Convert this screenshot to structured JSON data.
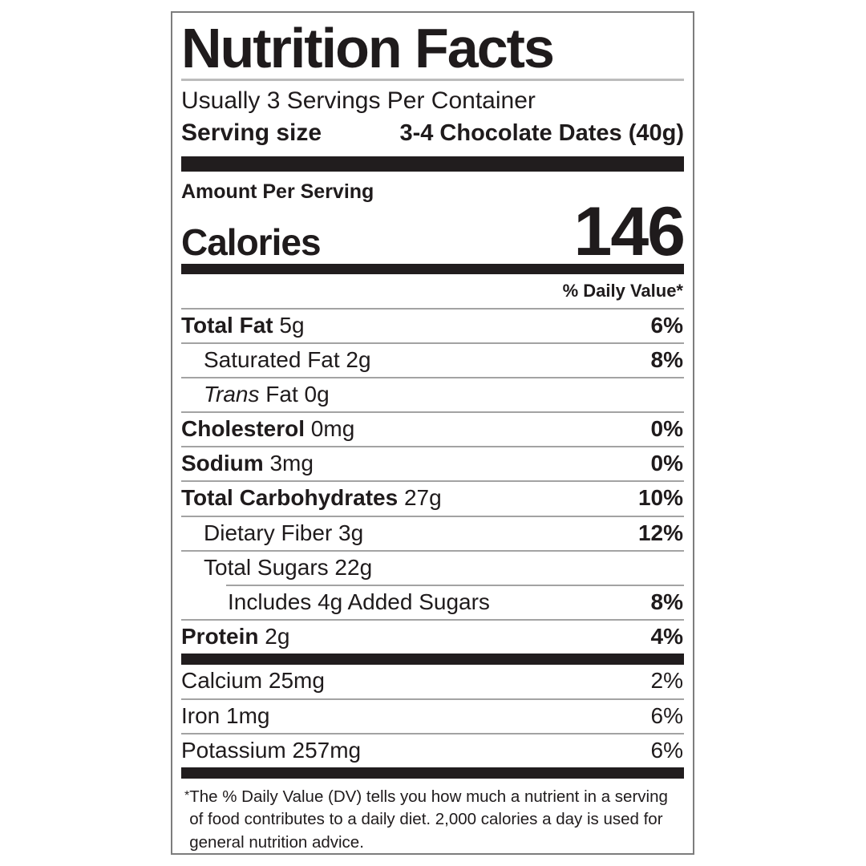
{
  "label": {
    "title": "Nutrition Facts",
    "servings_per_container": "Usually 3 Servings Per Container",
    "serving_size": {
      "label": "Serving size",
      "value": "3-4 Chocolate Dates (40g)"
    },
    "amount_per_serving": "Amount Per Serving",
    "calories": {
      "label": "Calories",
      "value": "146"
    },
    "daily_value_header": "% Daily Value*",
    "rows": [
      {
        "bold": "Total Fat",
        "rest": " 5g",
        "dv": "6%",
        "indent": 0
      },
      {
        "bold": "",
        "rest": "Saturated Fat 2g",
        "dv": "8%",
        "indent": 1
      },
      {
        "italic": "Trans",
        "rest": " Fat 0g",
        "dv": "",
        "indent": 1
      },
      {
        "bold": "Cholesterol",
        "rest": " 0mg",
        "dv": "0%",
        "indent": 0
      },
      {
        "bold": "Sodium",
        "rest": " 3mg",
        "dv": "0%",
        "indent": 0
      },
      {
        "bold": "Total Carbohydrates",
        "rest": "  27g",
        "dv": "10%",
        "indent": 0
      },
      {
        "bold": "",
        "rest": "Dietary Fiber 3g",
        "dv": "12%",
        "indent": 1
      },
      {
        "bold": "",
        "rest": "Total Sugars 22g",
        "dv": "",
        "indent": 1
      },
      {
        "bold": "",
        "rest": "Includes 4g Added Sugars",
        "dv": "8%",
        "indent": 2,
        "indent_divider": true
      },
      {
        "bold": "Protein",
        "rest": " 2g",
        "dv": "4%",
        "indent": 0
      }
    ],
    "minerals": [
      {
        "text": "Calcium 25mg",
        "dv": "2%"
      },
      {
        "text": "Iron 1mg",
        "dv": "6%"
      },
      {
        "text": "Potassium 257mg",
        "dv": "6%"
      }
    ],
    "footnote": {
      "marker": "*",
      "text": "The % Daily Value (DV) tells you how much a nutrient in a serving of food contributes to a daily diet. 2,000 calories a day is used for general nutrition advice."
    },
    "colors": {
      "ink": "#1f1b1c",
      "bar": "#211d1e",
      "hairline": "#a3a3a3",
      "border": "#7d7d7d"
    }
  }
}
